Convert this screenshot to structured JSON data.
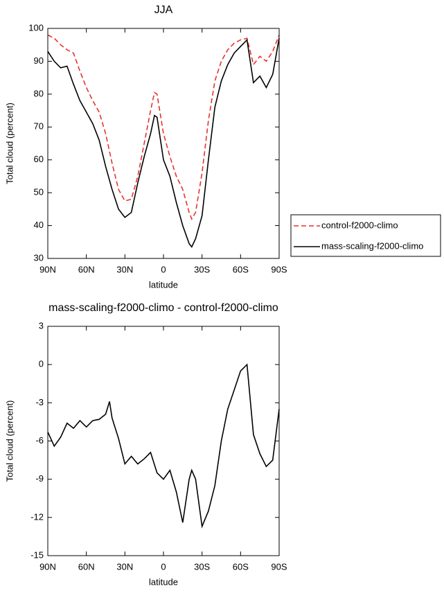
{
  "chart_data": [
    {
      "type": "line",
      "title": "JJA",
      "xlabel": "latitude",
      "ylabel": "Total cloud (percent)",
      "x": [
        90,
        85,
        80,
        75,
        70,
        65,
        60,
        55,
        50,
        45,
        40,
        35,
        30,
        25,
        20,
        15,
        10,
        7,
        5,
        0,
        -5,
        -10,
        -15,
        -20,
        -22,
        -25,
        -30,
        -35,
        -40,
        -45,
        -50,
        -55,
        -60,
        -65,
        -70,
        -75,
        -80,
        -85,
        -90
      ],
      "series": [
        {
          "name": "control-f2000-climo",
          "color": "#e8312a",
          "line_style": "dashed",
          "values": [
            98,
            97,
            95,
            93.5,
            92.5,
            87,
            82,
            78,
            74.5,
            68,
            59,
            51,
            47.5,
            48,
            55,
            65,
            75,
            80.5,
            80,
            68,
            61,
            55,
            51,
            44,
            42,
            44,
            56,
            72,
            84,
            90,
            93.5,
            95.5,
            96.5,
            97,
            89,
            91.5,
            90,
            93,
            98
          ]
        },
        {
          "name": "mass-scaling-f2000-climo",
          "color": "#000000",
          "line_style": "solid",
          "values": [
            93,
            90,
            88,
            88.5,
            83,
            78,
            74.5,
            71,
            66,
            58,
            51,
            45,
            42.5,
            44,
            53,
            61,
            68,
            73.5,
            73,
            60,
            55,
            47,
            40,
            34.5,
            33.5,
            36,
            43,
            60,
            76,
            84,
            89,
            92.5,
            94.5,
            96.5,
            83.5,
            85.5,
            82,
            86,
            97
          ]
        }
      ],
      "xlim": [
        90,
        -90
      ],
      "xticks": [
        {
          "value": 90,
          "label": "90N"
        },
        {
          "value": 60,
          "label": "60N"
        },
        {
          "value": 30,
          "label": "30N"
        },
        0,
        {
          "value": -30,
          "label": "30S"
        },
        {
          "value": -60,
          "label": "60S"
        },
        {
          "value": -90,
          "label": "90S"
        }
      ],
      "ylim": [
        30,
        100
      ],
      "yticks": [
        30,
        40,
        50,
        60,
        70,
        80,
        90,
        100
      ],
      "legend": "right"
    },
    {
      "type": "line",
      "title": "mass-scaling-f2000-climo - control-f2000-climo",
      "xlabel": "latitude",
      "ylabel": "Total cloud (percent)",
      "x": [
        90,
        85,
        80,
        75,
        70,
        65,
        60,
        55,
        50,
        45,
        42,
        40,
        35,
        30,
        25,
        20,
        15,
        10,
        5,
        0,
        -5,
        -10,
        -15,
        -20,
        -22,
        -25,
        -30,
        -35,
        -40,
        -45,
        -50,
        -55,
        -60,
        -65,
        -70,
        -75,
        -80,
        -85,
        -90
      ],
      "series": [
        {
          "color": "#000000",
          "line_style": "solid",
          "values": [
            -5.3,
            -6.4,
            -5.7,
            -4.6,
            -5,
            -4.4,
            -4.9,
            -4.4,
            -4.3,
            -3.9,
            -2.9,
            -4.2,
            -5.8,
            -7.8,
            -7.2,
            -7.8,
            -7.4,
            -6.9,
            -8.5,
            -9,
            -8.3,
            -10,
            -12.4,
            -9,
            -8.3,
            -9,
            -12.7,
            -11.5,
            -9.5,
            -6,
            -3.5,
            -2,
            -0.5,
            0,
            -5.5,
            -7,
            -8,
            -7.5,
            -3.5
          ]
        }
      ],
      "xlim": [
        90,
        -90
      ],
      "xticks": [
        {
          "value": 90,
          "label": "90N"
        },
        {
          "value": 60,
          "label": "60N"
        },
        {
          "value": 30,
          "label": "30N"
        },
        0,
        {
          "value": -30,
          "label": "30S"
        },
        {
          "value": -60,
          "label": "60S"
        },
        {
          "value": -90,
          "label": "90S"
        }
      ],
      "ylim": [
        -15,
        3
      ],
      "yticks": [
        -15,
        -12,
        -9,
        -6,
        -3,
        0,
        3
      ]
    }
  ]
}
